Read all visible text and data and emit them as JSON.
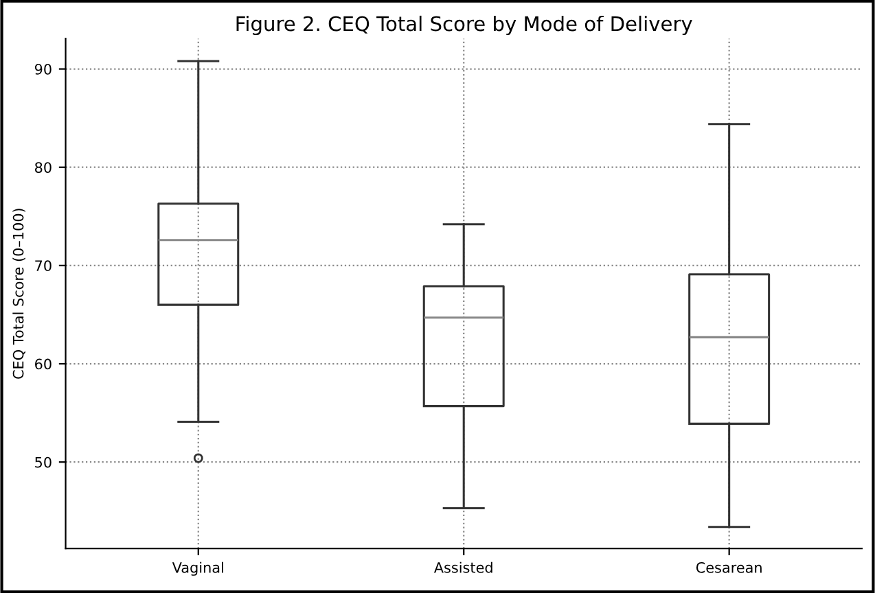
{
  "chart_data": {
    "type": "box",
    "title": "Figure 2. CEQ Total Score by Mode of Delivery",
    "ylabel": "CEQ Total Score (0–100)",
    "categories": [
      "Vaginal",
      "Assisted",
      "Cesarean"
    ],
    "boxes": [
      {
        "low": 54.1,
        "q1": 66.0,
        "median": 72.6,
        "q3": 76.3,
        "high": 90.8,
        "outliers": [
          50.4
        ]
      },
      {
        "low": 45.3,
        "q1": 55.7,
        "median": 64.7,
        "q3": 67.9,
        "high": 74.2
      },
      {
        "low": 43.4,
        "q1": 53.9,
        "median": 62.7,
        "q3": 69.1,
        "high": 84.4
      }
    ],
    "ylim": [
      41.2,
      93.1
    ],
    "yticks": [
      50,
      60,
      70,
      80,
      90
    ],
    "grid": true
  }
}
